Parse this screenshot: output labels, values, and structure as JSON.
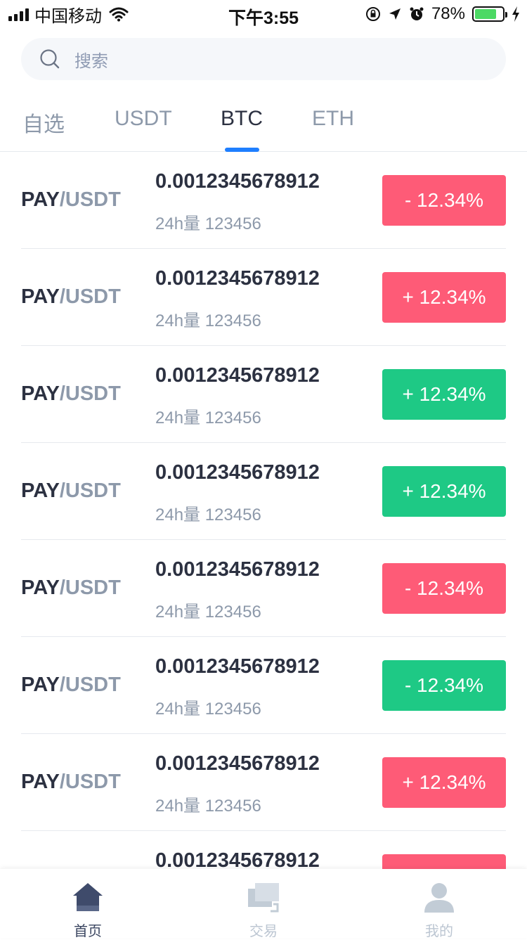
{
  "status_bar": {
    "carrier": "中国移动",
    "time": "下午3:55",
    "battery": "78%"
  },
  "search": {
    "placeholder": "搜索"
  },
  "tabs": [
    {
      "label": "自选",
      "active": false
    },
    {
      "label": "USDT",
      "active": false
    },
    {
      "label": "BTC",
      "active": true
    },
    {
      "label": "ETH",
      "active": false
    }
  ],
  "rows": [
    {
      "base": "PAY",
      "quote": "/USDT",
      "price": "0.0012345678912",
      "volume": "24h量 123456",
      "change": "- 12.34%",
      "color": "red"
    },
    {
      "base": "PAY",
      "quote": "/USDT",
      "price": "0.0012345678912",
      "volume": "24h量 123456",
      "change": "+ 12.34%",
      "color": "red"
    },
    {
      "base": "PAY",
      "quote": "/USDT",
      "price": "0.0012345678912",
      "volume": "24h量 123456",
      "change": "+ 12.34%",
      "color": "green"
    },
    {
      "base": "PAY",
      "quote": "/USDT",
      "price": "0.0012345678912",
      "volume": "24h量 123456",
      "change": "+ 12.34%",
      "color": "green"
    },
    {
      "base": "PAY",
      "quote": "/USDT",
      "price": "0.0012345678912",
      "volume": "24h量 123456",
      "change": "- 12.34%",
      "color": "red"
    },
    {
      "base": "PAY",
      "quote": "/USDT",
      "price": "0.0012345678912",
      "volume": "24h量 123456",
      "change": "- 12.34%",
      "color": "green"
    },
    {
      "base": "PAY",
      "quote": "/USDT",
      "price": "0.0012345678912",
      "volume": "24h量 123456",
      "change": "+ 12.34%",
      "color": "red"
    },
    {
      "base": "",
      "quote": "",
      "price": "0.0012345678912",
      "volume": "",
      "change": "",
      "color": "red"
    }
  ],
  "nav": [
    {
      "label": "首页",
      "icon": "home-icon",
      "active": true
    },
    {
      "label": "交易",
      "icon": "trade-icon",
      "active": false
    },
    {
      "label": "我的",
      "icon": "profile-icon",
      "active": false
    }
  ],
  "colors": {
    "red": "#fe5b77",
    "green": "#1ec985",
    "accent": "#1f7fff"
  }
}
